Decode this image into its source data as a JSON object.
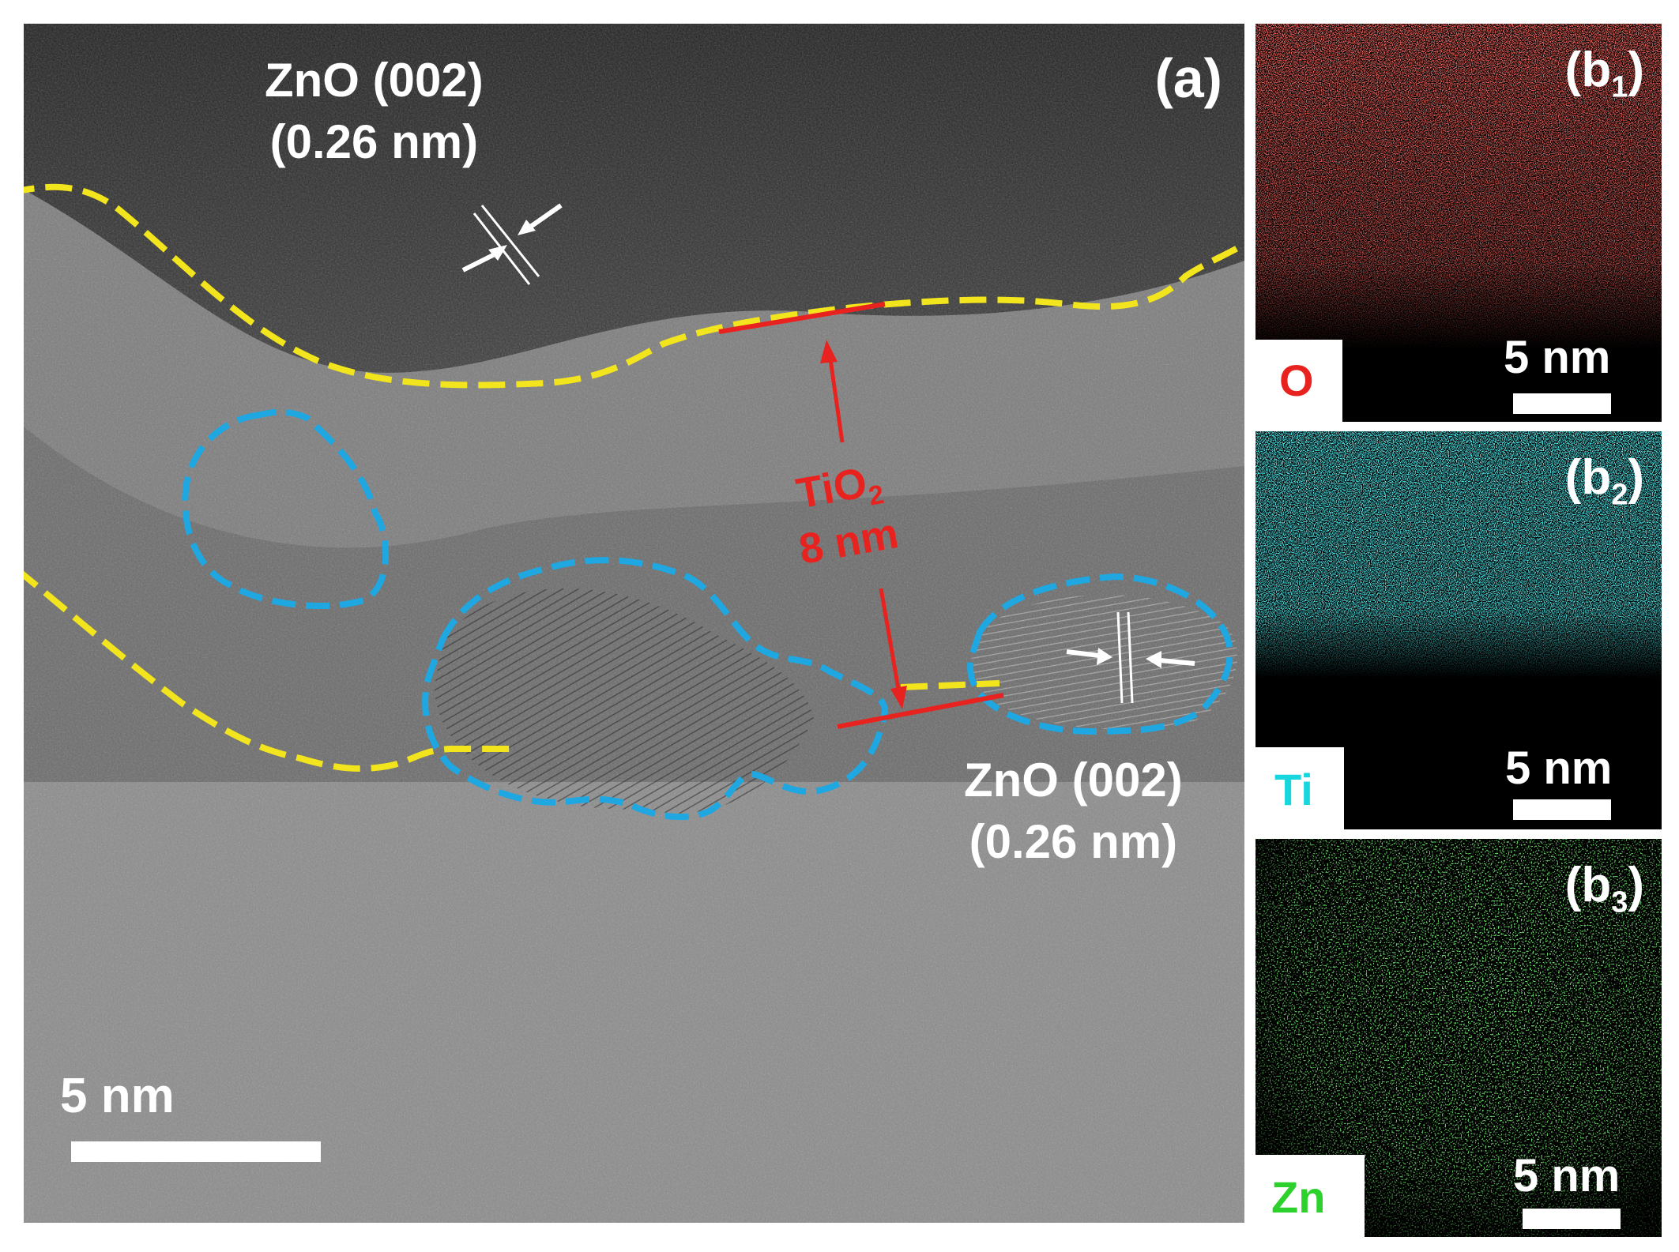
{
  "figure": {
    "panel_a": {
      "label": "(a)",
      "zno_top": {
        "line1": "ZnO (002)",
        "line2": "(0.26 nm)"
      },
      "zno_bottom": {
        "line1": "ZnO (002)",
        "line2": "(0.26 nm)"
      },
      "tio2": {
        "formula": "TiO",
        "subscript": "2",
        "thickness": "8 nm"
      },
      "scale_bar": "5 nm"
    },
    "maps": [
      {
        "label": "(b",
        "sub": "1",
        "close": ")",
        "element": "O",
        "scale_bar": "5 nm",
        "color": "#e8231f"
      },
      {
        "label": "(b",
        "sub": "2",
        "close": ")",
        "element": "Ti",
        "scale_bar": "5 nm",
        "color": "#17d6dd"
      },
      {
        "label": "(b",
        "sub": "3",
        "close": ")",
        "element": "Zn",
        "scale_bar": "5 nm",
        "color": "#2cd12c"
      }
    ],
    "colors": {
      "interface_dash": "#f2e51d",
      "grain_dash": "#1fa7e1",
      "annotation": "#e8231f"
    }
  }
}
